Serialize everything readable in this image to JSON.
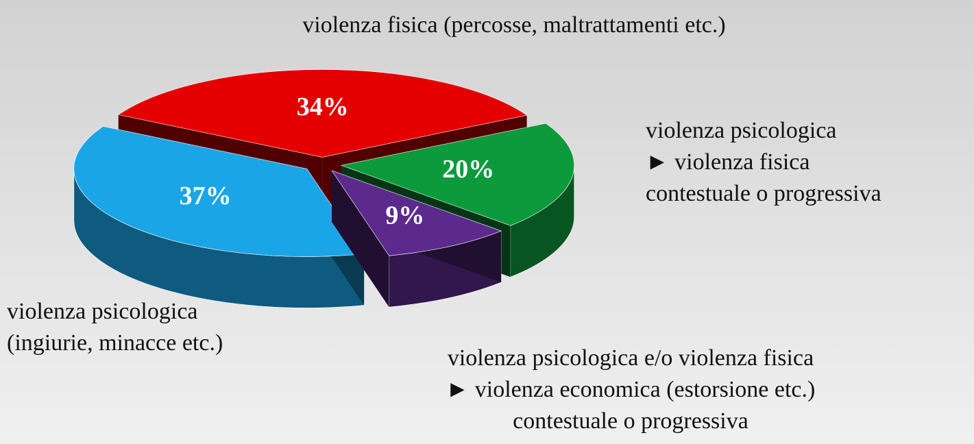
{
  "chart_data": {
    "type": "pie3d",
    "categories": [
      "violenza fisica (percosse, maltrattamenti etc.)",
      "violenza psicologica\n► violenza fisica\ncontestuale o progressiva",
      "violenza psicologica e/o violenza fisica\n► violenza economica (estorsione etc.)\ncontestuale o progressiva",
      "violenza psicologica\n(ingiurie, minacce etc.)"
    ],
    "values": [
      34,
      20,
      9,
      37
    ],
    "value_labels": [
      "34%",
      "20%",
      "9%",
      "37%"
    ],
    "colors": [
      "#e40000",
      "#0c9a3c",
      "#5b2a8c",
      "#1aa6e6"
    ]
  }
}
